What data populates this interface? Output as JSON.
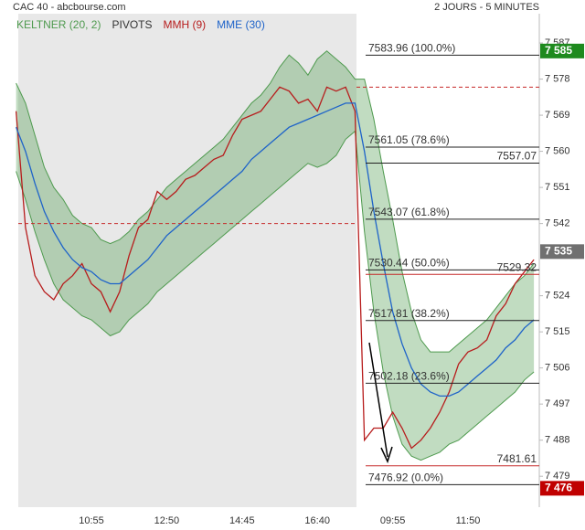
{
  "chart_data": {
    "type": "line",
    "title": "CAC 40 - abcbourse.com",
    "subtitle": "2 JOURS - 5 MINUTES",
    "categories": [
      null,
      null,
      null,
      null,
      null,
      null,
      null,
      null,
      "10:55",
      null,
      null,
      null,
      null,
      null,
      null,
      null,
      "12:50",
      null,
      null,
      null,
      null,
      null,
      null,
      null,
      "14:45",
      null,
      null,
      null,
      null,
      null,
      null,
      null,
      "16:40",
      null,
      null,
      null,
      null,
      null,
      null,
      null,
      "09:55",
      null,
      null,
      null,
      null,
      null,
      null,
      null,
      "11:50",
      null,
      null,
      null,
      null,
      null,
      null,
      null
    ],
    "ylim": [
      7471.3,
      7594.3
    ],
    "yticks": [
      {
        "value": 7587,
        "label": "7 587"
      },
      {
        "value": 7578,
        "label": "7 578"
      },
      {
        "value": 7569,
        "label": "7 569"
      },
      {
        "value": 7560,
        "label": "7 560"
      },
      {
        "value": 7551,
        "label": "7 551"
      },
      {
        "value": 7542,
        "label": "7 542"
      },
      {
        "value": 7524,
        "label": "7 524"
      },
      {
        "value": 7515,
        "label": "7 515"
      },
      {
        "value": 7506,
        "label": "7 506"
      },
      {
        "value": 7497,
        "label": "7 497"
      },
      {
        "value": 7488,
        "label": "7 488"
      },
      {
        "value": 7479,
        "label": "7 479"
      }
    ],
    "band": {
      "name": "KELTNER (20, 2)",
      "color": "#4e9a4e",
      "upper": [
        7577,
        7572,
        7564,
        7556,
        7551,
        7548,
        7544,
        7542,
        7541,
        7538,
        7537,
        7538,
        7540,
        7543,
        7545,
        7548,
        7551,
        7553,
        7555,
        7557,
        7559,
        7561,
        7563,
        7566,
        7569,
        7572,
        7574,
        7577,
        7581,
        7584,
        7582,
        7579,
        7583,
        7585,
        7583,
        7581,
        7578,
        7578,
        7568,
        7555,
        7543,
        7530,
        7520,
        7513,
        7510,
        7510,
        7510,
        7512,
        7514,
        7516,
        7518,
        7521,
        7524,
        7527,
        7529,
        7532
      ],
      "lower": [
        7555,
        7548,
        7540,
        7533,
        7527,
        7523,
        7521,
        7519,
        7518,
        7516,
        7514,
        7515,
        7518,
        7520,
        7522,
        7525,
        7527,
        7529,
        7531,
        7533,
        7535,
        7537,
        7539,
        7541,
        7543,
        7545,
        7547,
        7549,
        7551,
        7553,
        7555,
        7557,
        7556,
        7557,
        7559,
        7563,
        7565,
        7540,
        7520,
        7505,
        7494,
        7487,
        7484,
        7483,
        7484,
        7485,
        7487,
        7488,
        7490,
        7492,
        7494,
        7496,
        7498,
        7500,
        7503,
        7505
      ]
    },
    "pivots": {
      "name": "PIVOTS",
      "color": "#c62828",
      "levels": [
        7542,
        7576
      ]
    },
    "series": [
      {
        "name": "MMH (9)",
        "color": "#b71c1c",
        "values": [
          7570,
          7541,
          7529,
          7525,
          7523,
          7527,
          7529,
          7532,
          7527,
          7525,
          7520,
          7525,
          7534,
          7541,
          7543,
          7550,
          7548,
          7550,
          7553,
          7554,
          7556,
          7558,
          7559,
          7564,
          7568,
          7569,
          7570,
          7573,
          7576,
          7575,
          7572,
          7573,
          7570,
          7576,
          7575,
          7576,
          7570,
          7488,
          7491,
          7491,
          7495,
          7491,
          7486,
          7488,
          7491,
          7495,
          7500,
          7507,
          7510,
          7511,
          7513,
          7519,
          7522,
          7527,
          7530,
          7533
        ]
      },
      {
        "name": "MME (30)",
        "color": "#1e63c9",
        "values": [
          7566,
          7560,
          7552,
          7545,
          7540,
          7536,
          7533,
          7531,
          7530,
          7528,
          7527,
          7527,
          7529,
          7531,
          7533,
          7536,
          7539,
          7541,
          7543,
          7545,
          7547,
          7549,
          7551,
          7553,
          7555,
          7558,
          7560,
          7562,
          7564,
          7566,
          7567,
          7568,
          7569,
          7570,
          7571,
          7572,
          7572,
          7560,
          7545,
          7532,
          7520,
          7512,
          7506,
          7502,
          7500,
          7499,
          7499,
          7500,
          7502,
          7504,
          7506,
          7508,
          7511,
          7513,
          7516,
          7518
        ]
      }
    ],
    "fibonacci": {
      "values": [
        7583.96,
        7561.05,
        7543.07,
        7530.44,
        7517.81,
        7502.18,
        7476.92
      ],
      "value_labels": [
        "7583.96 (100.0%)",
        "7561.05 (78.6%)",
        "7543.07 (61.8%)",
        "7530.44 (50.0%)",
        "7517.81 (38.2%)",
        "7502.18 (23.6%)",
        "7476.92 (0.0%)"
      ]
    },
    "levels": [
      {
        "value": 7557.07,
        "color": "#222222"
      },
      {
        "value": 7529.32,
        "color": "#c62828"
      },
      {
        "value": 7481.61,
        "color": "#c62828"
      }
    ],
    "price_tags": [
      {
        "value": 7585,
        "label": "7 585",
        "color": "#1e8a1e"
      },
      {
        "value": 7535,
        "label": "7 535",
        "color": "#707070"
      },
      {
        "value": 7476,
        "label": "7 476",
        "color": "#c00000"
      }
    ]
  }
}
